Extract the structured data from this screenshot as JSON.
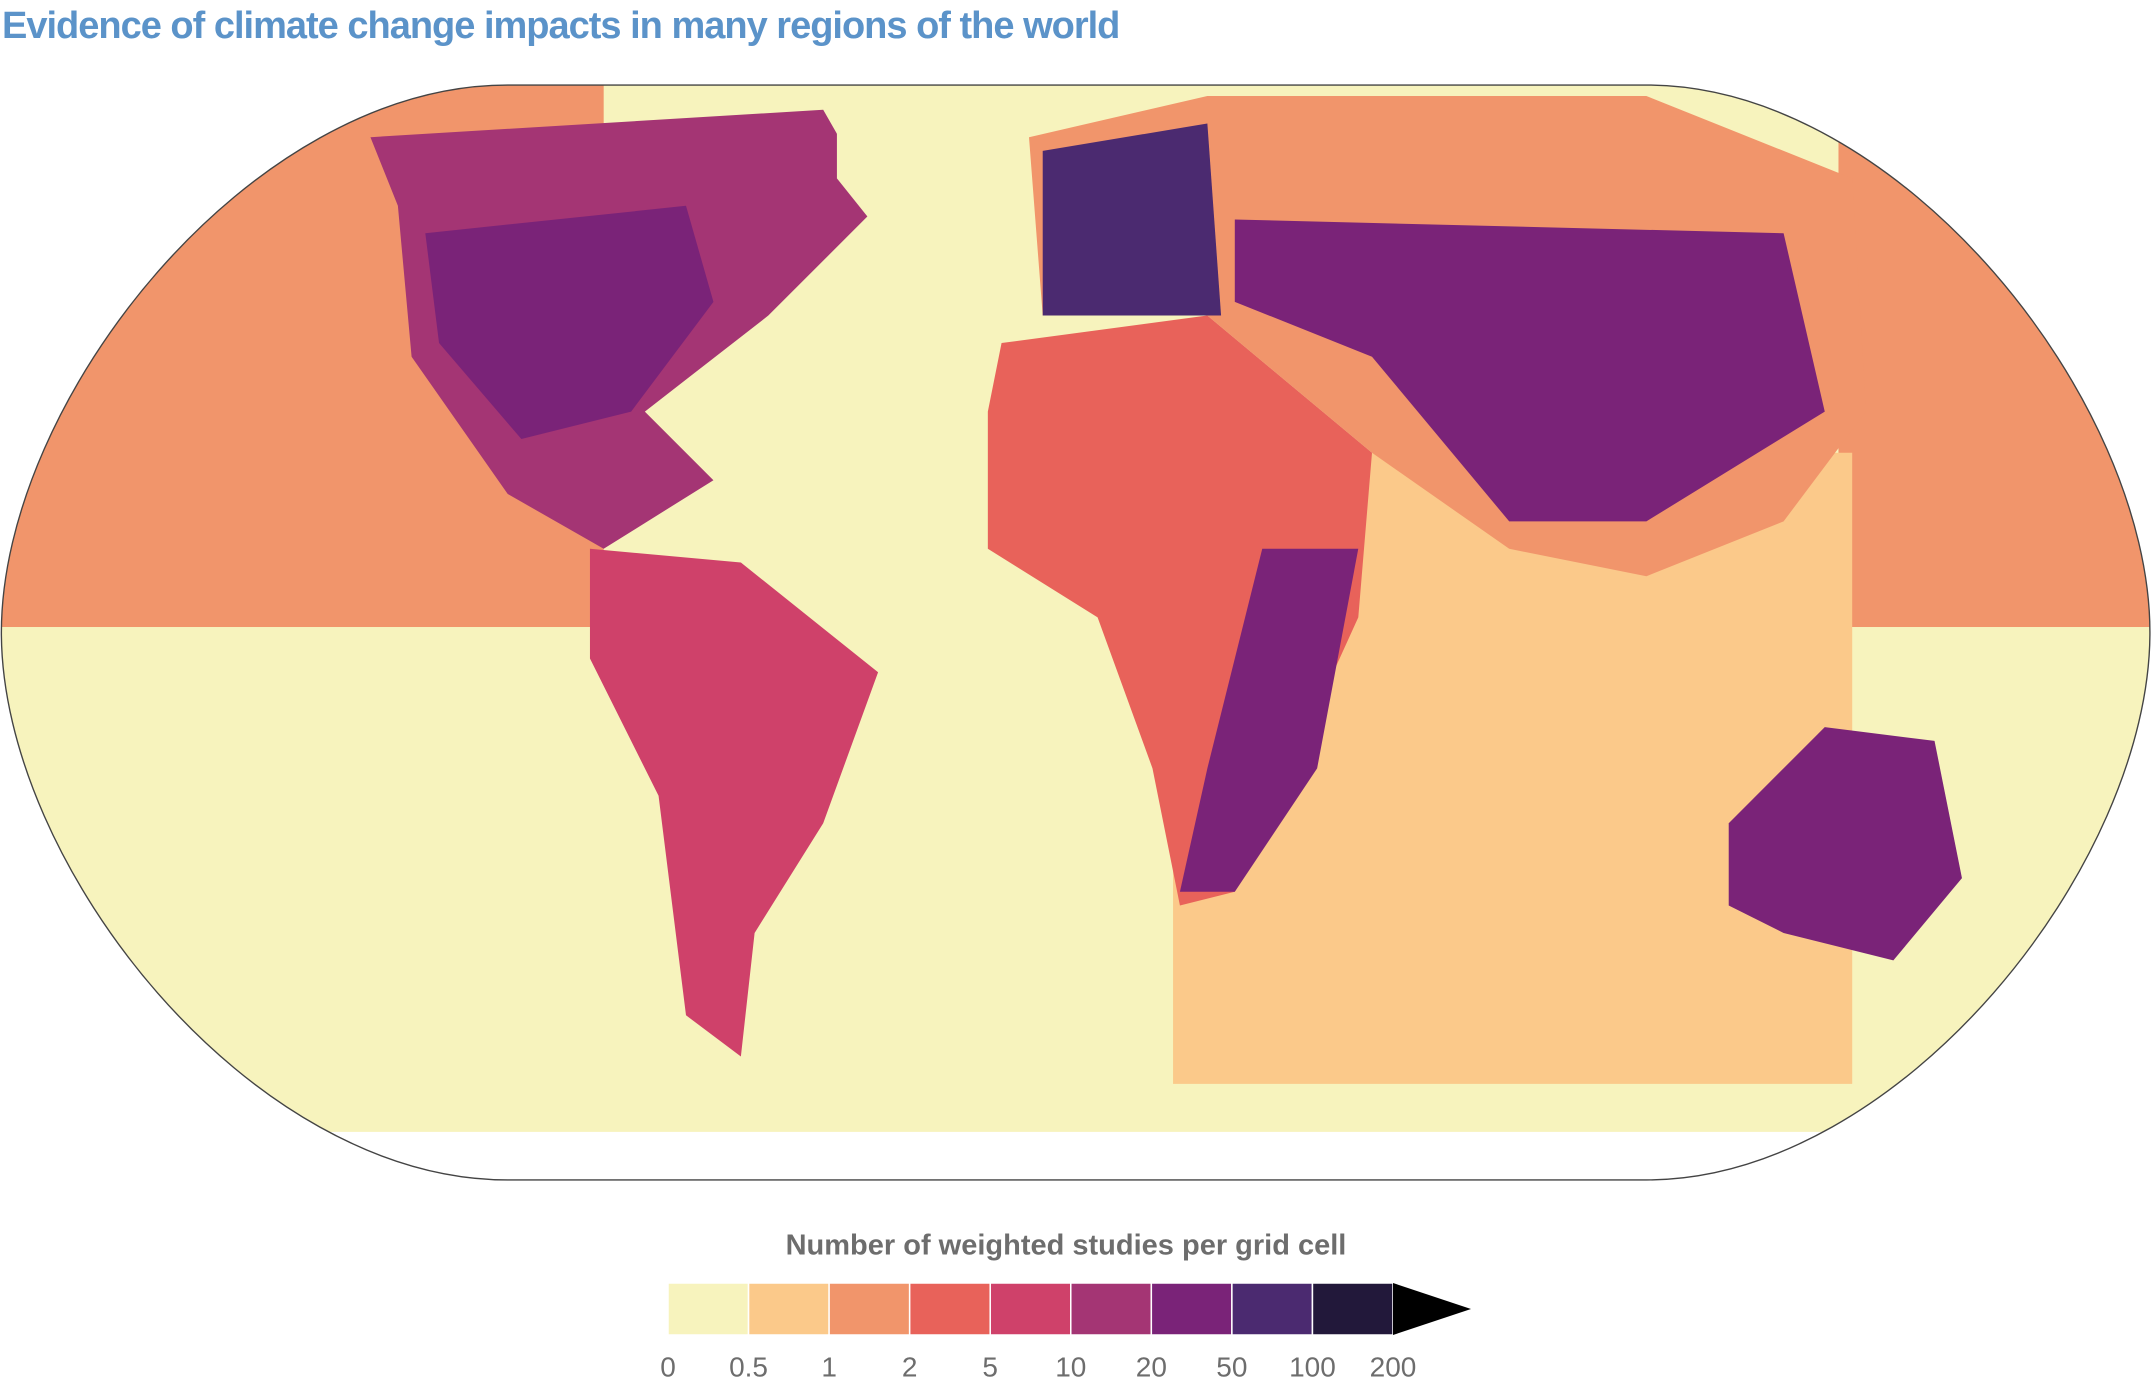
{
  "title": "Evidence of climate change impacts in many regions of the world",
  "legend": {
    "title": "Number of weighted studies per grid cell",
    "ticks": [
      0,
      0.5,
      1,
      2,
      5,
      10,
      20,
      50,
      100,
      200
    ],
    "colors": [
      "#f7f3bd",
      "#fbc98a",
      "#f1956b",
      "#e8625a",
      "#cf416a",
      "#a43574",
      "#7a2378",
      "#4b2a70",
      "#22183a",
      "#000000"
    ]
  }
}
